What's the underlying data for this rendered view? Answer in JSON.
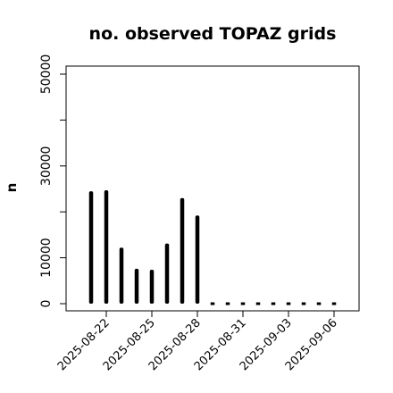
{
  "chart_data": {
    "type": "bar",
    "title": "no. observed TOPAZ grids",
    "xlabel": "",
    "ylabel": "n",
    "x": [
      "2025-08-21",
      "2025-08-22",
      "2025-08-23",
      "2025-08-24",
      "2025-08-25",
      "2025-08-26",
      "2025-08-27",
      "2025-08-28",
      "2025-08-29",
      "2025-08-30",
      "2025-08-31",
      "2025-09-01",
      "2025-09-02",
      "2025-09-03",
      "2025-09-04",
      "2025-09-05",
      "2025-09-06"
    ],
    "values": [
      24500,
      24700,
      12200,
      7600,
      7400,
      13100,
      23000,
      19200,
      0,
      0,
      0,
      0,
      0,
      0,
      0,
      0,
      0
    ],
    "ylim": [
      0,
      52000
    ],
    "yticks": [
      0,
      10000,
      20000,
      30000,
      40000,
      50000
    ],
    "ytick_labels": [
      "0",
      "10000",
      "",
      "30000",
      "",
      "50000"
    ],
    "xticks": [
      "2025-08-22",
      "2025-08-25",
      "2025-08-28",
      "2025-08-31",
      "2025-09-03",
      "2025-09-06"
    ],
    "highlight_tick": "2025-08-28",
    "colors": {
      "bar": "#000000",
      "highlight_tick": "#228B22",
      "axis": "#000000"
    },
    "grid": false
  }
}
